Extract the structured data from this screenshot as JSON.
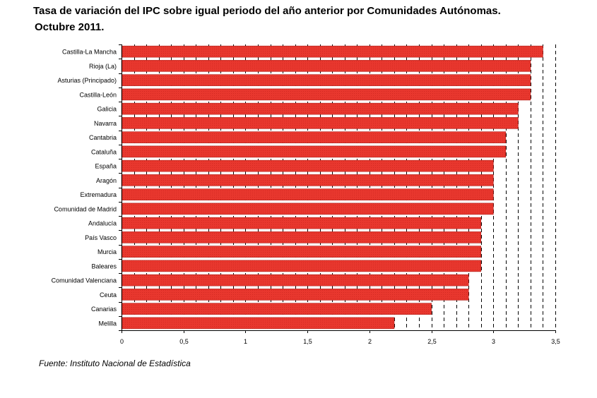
{
  "title": {
    "line1": "Tasa de variación del IPC sobre igual periodo del año anterior por Comunidades Autónomas.",
    "line2": "Octubre 2011."
  },
  "source": "Fuente: Instituto Nacional de Estadística",
  "colors": {
    "bar": "#e8372e",
    "bar_edge": "#b0201a",
    "axis": "#000000"
  },
  "chart_data": {
    "type": "bar",
    "orientation": "horizontal",
    "categories": [
      "Castilla-La Mancha",
      "Rioja (La)",
      "Asturias (Principado)",
      "Castilla-León",
      "Galicia",
      "Navarra",
      "Cantabria",
      "Cataluña",
      "España",
      "Aragón",
      "Extremadura",
      "Comunidad de Madrid",
      "Andalucía",
      "País Vasco",
      "Murcia",
      "Baleares",
      "Comunidad Valenciana",
      "Ceuta",
      "Canarias",
      "Melilla"
    ],
    "values": [
      3.4,
      3.3,
      3.3,
      3.3,
      3.2,
      3.2,
      3.1,
      3.1,
      3.0,
      3.0,
      3.0,
      3.0,
      2.9,
      2.9,
      2.9,
      2.9,
      2.8,
      2.8,
      2.5,
      2.2
    ],
    "xlim": [
      0,
      3.5
    ],
    "xticks": [
      0,
      0.5,
      1,
      1.5,
      2,
      2.5,
      3,
      3.5
    ],
    "xtick_labels": [
      "0",
      "0,5",
      "1",
      "1,5",
      "2",
      "2,5",
      "3",
      "3,5"
    ],
    "grid": "vertical dashed",
    "legend": "none"
  }
}
